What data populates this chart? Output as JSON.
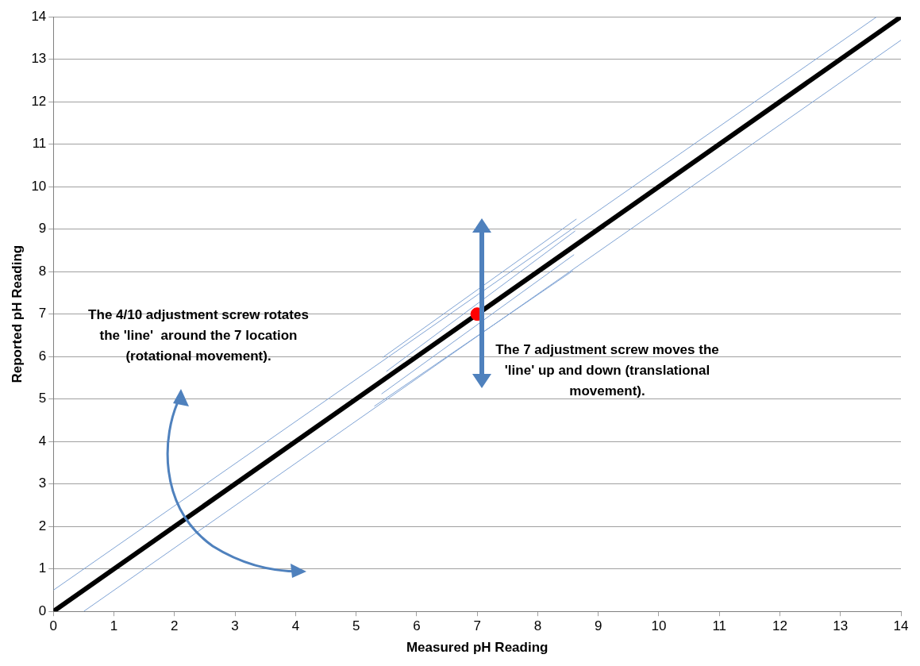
{
  "chart_data": {
    "type": "line",
    "xlabel": "Measured pH Reading",
    "ylabel": "Reported pH Reading",
    "xlim": [
      0,
      14
    ],
    "ylim": [
      0,
      14
    ],
    "xticks": [
      0,
      1,
      2,
      3,
      4,
      5,
      6,
      7,
      8,
      9,
      10,
      11,
      12,
      13,
      14
    ],
    "yticks": [
      0,
      1,
      2,
      3,
      4,
      5,
      6,
      7,
      8,
      9,
      10,
      11,
      12,
      13,
      14
    ],
    "grid": "y",
    "legend": false,
    "marker": "none",
    "line_style": "solid",
    "annotations": [
      "The 4/10 adjustment screw rotates the 'line'  around the 7 location (rotational movement).",
      "The 7 adjustment screw moves the 'line' up and down (translational movement)."
    ],
    "series": [
      {
        "color": "#000000",
        "x": [
          0,
          14
        ],
        "values": [
          0,
          14
        ]
      },
      {
        "color": "#7fa3d4",
        "x": [
          0,
          13.6
        ],
        "values": [
          0.5,
          14
        ]
      },
      {
        "color": "#7fa3d4",
        "x": [
          0.5,
          14
        ],
        "values": [
          0,
          13.45
        ]
      },
      {
        "color": "#7fa3d4",
        "x": [
          5.44,
          8.64
        ],
        "values": [
          5.98,
          9.24
        ]
      },
      {
        "color": "#7fa3d4",
        "x": [
          5.5,
          8.62
        ],
        "values": [
          5.65,
          8.96
        ]
      },
      {
        "color": "#7fa3d4",
        "x": [
          5.42,
          8.6
        ],
        "values": [
          5.12,
          8.4
        ]
      },
      {
        "color": "#7fa3d4",
        "x": [
          5.3,
          8.58
        ],
        "values": [
          4.83,
          8.02
        ]
      },
      {
        "type": "scatter",
        "marker": "circle",
        "color": "#ff0000",
        "x": [
          7
        ],
        "values": [
          7
        ]
      }
    ]
  }
}
